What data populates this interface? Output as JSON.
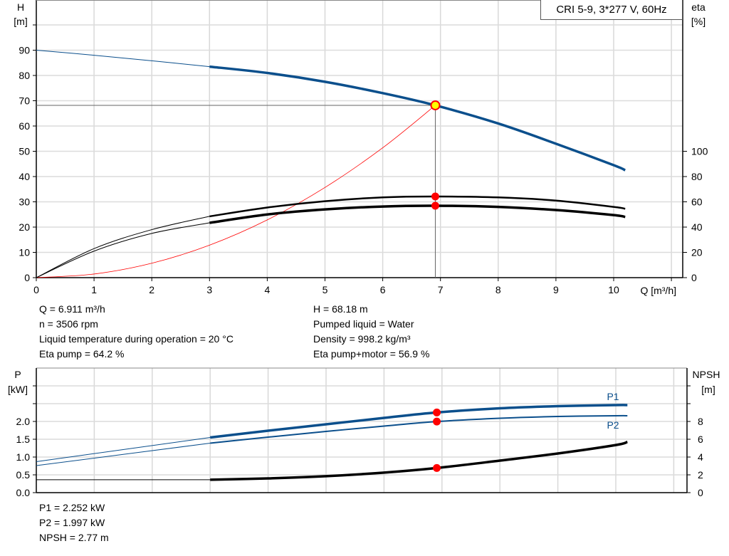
{
  "title_box": "CRI 5-9, 3*277 V, 60Hz",
  "colors": {
    "head": "#0b4f8c",
    "power": "#0b4f8c",
    "eta": "#000000",
    "npsh": "#000000",
    "system": "#ff0000",
    "duty_point": "#ff0000",
    "duty_fill": "#ffff00"
  },
  "chart_data": [
    {
      "type": "line",
      "xlabel": "Q [m³/h]",
      "ylabel": "H\n[m]",
      "ylabel_right": "eta\n[%]",
      "ylabel_parts": [
        "H",
        "[m]"
      ],
      "ylabel_right_parts": [
        "eta",
        "[%]"
      ],
      "xlim": [
        0,
        11.2
      ],
      "ylim": [
        0,
        110
      ],
      "ylim_right": [
        0,
        220
      ],
      "x_ticks": [
        0,
        1,
        2,
        3,
        4,
        5,
        6,
        7,
        8,
        9,
        10
      ],
      "y_ticks": [
        0,
        10,
        20,
        30,
        40,
        50,
        60,
        70,
        80,
        90
      ],
      "y_ticks_right": [
        0,
        20,
        40,
        60,
        80,
        100
      ],
      "grid": true,
      "series": [
        {
          "key": "H",
          "axis": "left",
          "x": [
            0,
            1,
            2,
            3,
            4,
            5,
            6,
            6.911,
            8,
            9,
            10,
            10.2
          ],
          "y": [
            90,
            88,
            85.8,
            83.5,
            81,
            77.5,
            73,
            68.18,
            61,
            53,
            44.5,
            42.5
          ],
          "bold_from": 3
        },
        {
          "key": "eta_pump",
          "axis": "right",
          "x": [
            0,
            1,
            2,
            3,
            4,
            5,
            6,
            6.911,
            8,
            9,
            10,
            10.2
          ],
          "y": [
            0,
            23,
            38,
            48.5,
            55.5,
            60.5,
            63.5,
            64.2,
            63.5,
            61,
            56,
            54.5
          ],
          "bold_from": 3
        },
        {
          "key": "eta_pump_motor",
          "axis": "right",
          "x": [
            0,
            1,
            2,
            3,
            4,
            5,
            6,
            6.911,
            8,
            9,
            10,
            10.2
          ],
          "y": [
            0,
            21,
            35,
            43.4,
            50,
            54,
            56.3,
            56.9,
            56,
            53.5,
            49.5,
            48
          ],
          "bold_from": 3
        },
        {
          "key": "system",
          "axis": "left",
          "x": [
            0,
            1,
            2,
            3,
            4,
            5,
            6,
            6.911
          ],
          "y": [
            0,
            1.43,
            5.71,
            12.85,
            22.84,
            35.69,
            51.39,
            68.18
          ]
        }
      ],
      "duty_point": {
        "Q": 6.911,
        "H": 68.18,
        "eta_pump": 64.2,
        "eta_pump_motor": 56.9
      }
    },
    {
      "type": "line",
      "ylabel_parts": [
        "P",
        "[kW]"
      ],
      "ylabel_right_parts": [
        "NPSH",
        "[m]"
      ],
      "xlim": [
        0,
        11.2
      ],
      "ylim": [
        0,
        3.0
      ],
      "ylim_right": [
        0,
        12
      ],
      "y_ticks": [
        0.0,
        0.5,
        1.0,
        1.5,
        2.0
      ],
      "y_ticks_labels": [
        "0.0",
        "0.5",
        "1.0",
        "1.5",
        "2.0"
      ],
      "y_ticks_right": [
        0,
        2,
        4,
        6,
        8
      ],
      "grid": true,
      "series": [
        {
          "key": "P1",
          "name": "P1",
          "axis": "left",
          "x": [
            0,
            3,
            4,
            5,
            6,
            6.911,
            8,
            9,
            10,
            10.2
          ],
          "y": [
            0.87,
            1.55,
            1.74,
            1.92,
            2.1,
            2.252,
            2.37,
            2.43,
            2.46,
            2.46
          ],
          "bold_from": 3
        },
        {
          "key": "P2",
          "name": "P2",
          "axis": "left",
          "x": [
            0,
            3,
            4,
            5,
            6,
            6.911,
            8,
            9,
            10,
            10.2
          ],
          "y": [
            0.76,
            1.39,
            1.56,
            1.72,
            1.87,
            1.997,
            2.09,
            2.14,
            2.16,
            2.16
          ],
          "bold_from": 3
        },
        {
          "key": "NPSH",
          "axis": "right",
          "x": [
            0,
            3,
            4,
            5,
            6,
            6.911,
            8,
            9,
            10,
            10.2
          ],
          "y": [
            1.45,
            1.45,
            1.6,
            1.85,
            2.25,
            2.77,
            3.6,
            4.4,
            5.35,
            5.7
          ],
          "bold_from": 3
        }
      ],
      "duty_point": {
        "Q": 6.911,
        "P1": 2.252,
        "P2": 1.997,
        "NPSH": 2.77
      }
    }
  ],
  "info_top_left": [
    "Q = 6.911 m³/h",
    "n = 3506 rpm",
    "Liquid temperature during operation = 20 °C",
    "Eta pump = 64.2 %"
  ],
  "info_top_right": [
    "H = 68.18 m",
    "Pumped liquid = Water",
    "Density = 998.2 kg/m³",
    "Eta pump+motor = 56.9 %"
  ],
  "info_bottom": [
    "P1 = 2.252 kW",
    "P2 = 1.997 kW",
    "NPSH = 2.77 m"
  ]
}
